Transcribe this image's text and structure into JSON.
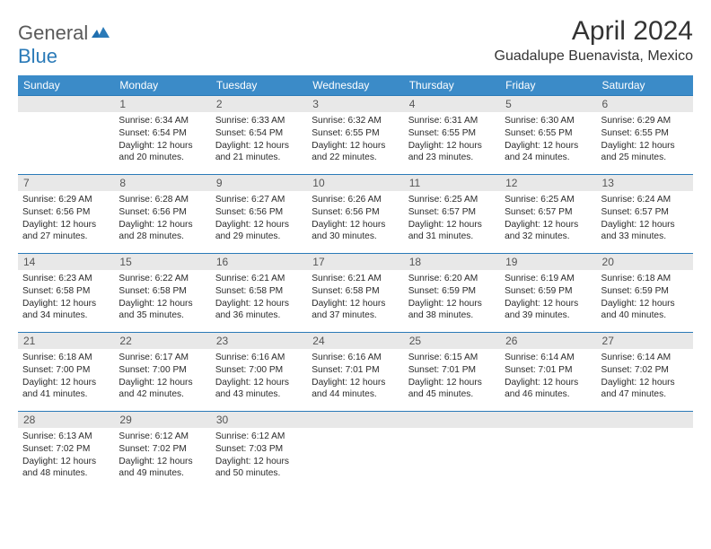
{
  "brand": {
    "word1": "General",
    "word2": "Blue"
  },
  "title": "April 2024",
  "location": "Guadalupe Buenavista, Mexico",
  "colors": {
    "header_bg": "#3b8bc8",
    "header_fg": "#ffffff",
    "week_rule": "#2a7ab8",
    "daynum_bg": "#e8e8e8",
    "text": "#2b2b2b"
  },
  "day_headers": [
    "Sunday",
    "Monday",
    "Tuesday",
    "Wednesday",
    "Thursday",
    "Friday",
    "Saturday"
  ],
  "weeks": [
    [
      {
        "n": "",
        "sunrise": "",
        "sunset": "",
        "daylight": ""
      },
      {
        "n": "1",
        "sunrise": "Sunrise: 6:34 AM",
        "sunset": "Sunset: 6:54 PM",
        "daylight": "Daylight: 12 hours and 20 minutes."
      },
      {
        "n": "2",
        "sunrise": "Sunrise: 6:33 AM",
        "sunset": "Sunset: 6:54 PM",
        "daylight": "Daylight: 12 hours and 21 minutes."
      },
      {
        "n": "3",
        "sunrise": "Sunrise: 6:32 AM",
        "sunset": "Sunset: 6:55 PM",
        "daylight": "Daylight: 12 hours and 22 minutes."
      },
      {
        "n": "4",
        "sunrise": "Sunrise: 6:31 AM",
        "sunset": "Sunset: 6:55 PM",
        "daylight": "Daylight: 12 hours and 23 minutes."
      },
      {
        "n": "5",
        "sunrise": "Sunrise: 6:30 AM",
        "sunset": "Sunset: 6:55 PM",
        "daylight": "Daylight: 12 hours and 24 minutes."
      },
      {
        "n": "6",
        "sunrise": "Sunrise: 6:29 AM",
        "sunset": "Sunset: 6:55 PM",
        "daylight": "Daylight: 12 hours and 25 minutes."
      }
    ],
    [
      {
        "n": "7",
        "sunrise": "Sunrise: 6:29 AM",
        "sunset": "Sunset: 6:56 PM",
        "daylight": "Daylight: 12 hours and 27 minutes."
      },
      {
        "n": "8",
        "sunrise": "Sunrise: 6:28 AM",
        "sunset": "Sunset: 6:56 PM",
        "daylight": "Daylight: 12 hours and 28 minutes."
      },
      {
        "n": "9",
        "sunrise": "Sunrise: 6:27 AM",
        "sunset": "Sunset: 6:56 PM",
        "daylight": "Daylight: 12 hours and 29 minutes."
      },
      {
        "n": "10",
        "sunrise": "Sunrise: 6:26 AM",
        "sunset": "Sunset: 6:56 PM",
        "daylight": "Daylight: 12 hours and 30 minutes."
      },
      {
        "n": "11",
        "sunrise": "Sunrise: 6:25 AM",
        "sunset": "Sunset: 6:57 PM",
        "daylight": "Daylight: 12 hours and 31 minutes."
      },
      {
        "n": "12",
        "sunrise": "Sunrise: 6:25 AM",
        "sunset": "Sunset: 6:57 PM",
        "daylight": "Daylight: 12 hours and 32 minutes."
      },
      {
        "n": "13",
        "sunrise": "Sunrise: 6:24 AM",
        "sunset": "Sunset: 6:57 PM",
        "daylight": "Daylight: 12 hours and 33 minutes."
      }
    ],
    [
      {
        "n": "14",
        "sunrise": "Sunrise: 6:23 AM",
        "sunset": "Sunset: 6:58 PM",
        "daylight": "Daylight: 12 hours and 34 minutes."
      },
      {
        "n": "15",
        "sunrise": "Sunrise: 6:22 AM",
        "sunset": "Sunset: 6:58 PM",
        "daylight": "Daylight: 12 hours and 35 minutes."
      },
      {
        "n": "16",
        "sunrise": "Sunrise: 6:21 AM",
        "sunset": "Sunset: 6:58 PM",
        "daylight": "Daylight: 12 hours and 36 minutes."
      },
      {
        "n": "17",
        "sunrise": "Sunrise: 6:21 AM",
        "sunset": "Sunset: 6:58 PM",
        "daylight": "Daylight: 12 hours and 37 minutes."
      },
      {
        "n": "18",
        "sunrise": "Sunrise: 6:20 AM",
        "sunset": "Sunset: 6:59 PM",
        "daylight": "Daylight: 12 hours and 38 minutes."
      },
      {
        "n": "19",
        "sunrise": "Sunrise: 6:19 AM",
        "sunset": "Sunset: 6:59 PM",
        "daylight": "Daylight: 12 hours and 39 minutes."
      },
      {
        "n": "20",
        "sunrise": "Sunrise: 6:18 AM",
        "sunset": "Sunset: 6:59 PM",
        "daylight": "Daylight: 12 hours and 40 minutes."
      }
    ],
    [
      {
        "n": "21",
        "sunrise": "Sunrise: 6:18 AM",
        "sunset": "Sunset: 7:00 PM",
        "daylight": "Daylight: 12 hours and 41 minutes."
      },
      {
        "n": "22",
        "sunrise": "Sunrise: 6:17 AM",
        "sunset": "Sunset: 7:00 PM",
        "daylight": "Daylight: 12 hours and 42 minutes."
      },
      {
        "n": "23",
        "sunrise": "Sunrise: 6:16 AM",
        "sunset": "Sunset: 7:00 PM",
        "daylight": "Daylight: 12 hours and 43 minutes."
      },
      {
        "n": "24",
        "sunrise": "Sunrise: 6:16 AM",
        "sunset": "Sunset: 7:01 PM",
        "daylight": "Daylight: 12 hours and 44 minutes."
      },
      {
        "n": "25",
        "sunrise": "Sunrise: 6:15 AM",
        "sunset": "Sunset: 7:01 PM",
        "daylight": "Daylight: 12 hours and 45 minutes."
      },
      {
        "n": "26",
        "sunrise": "Sunrise: 6:14 AM",
        "sunset": "Sunset: 7:01 PM",
        "daylight": "Daylight: 12 hours and 46 minutes."
      },
      {
        "n": "27",
        "sunrise": "Sunrise: 6:14 AM",
        "sunset": "Sunset: 7:02 PM",
        "daylight": "Daylight: 12 hours and 47 minutes."
      }
    ],
    [
      {
        "n": "28",
        "sunrise": "Sunrise: 6:13 AM",
        "sunset": "Sunset: 7:02 PM",
        "daylight": "Daylight: 12 hours and 48 minutes."
      },
      {
        "n": "29",
        "sunrise": "Sunrise: 6:12 AM",
        "sunset": "Sunset: 7:02 PM",
        "daylight": "Daylight: 12 hours and 49 minutes."
      },
      {
        "n": "30",
        "sunrise": "Sunrise: 6:12 AM",
        "sunset": "Sunset: 7:03 PM",
        "daylight": "Daylight: 12 hours and 50 minutes."
      },
      {
        "n": "",
        "sunrise": "",
        "sunset": "",
        "daylight": ""
      },
      {
        "n": "",
        "sunrise": "",
        "sunset": "",
        "daylight": ""
      },
      {
        "n": "",
        "sunrise": "",
        "sunset": "",
        "daylight": ""
      },
      {
        "n": "",
        "sunrise": "",
        "sunset": "",
        "daylight": ""
      }
    ]
  ]
}
